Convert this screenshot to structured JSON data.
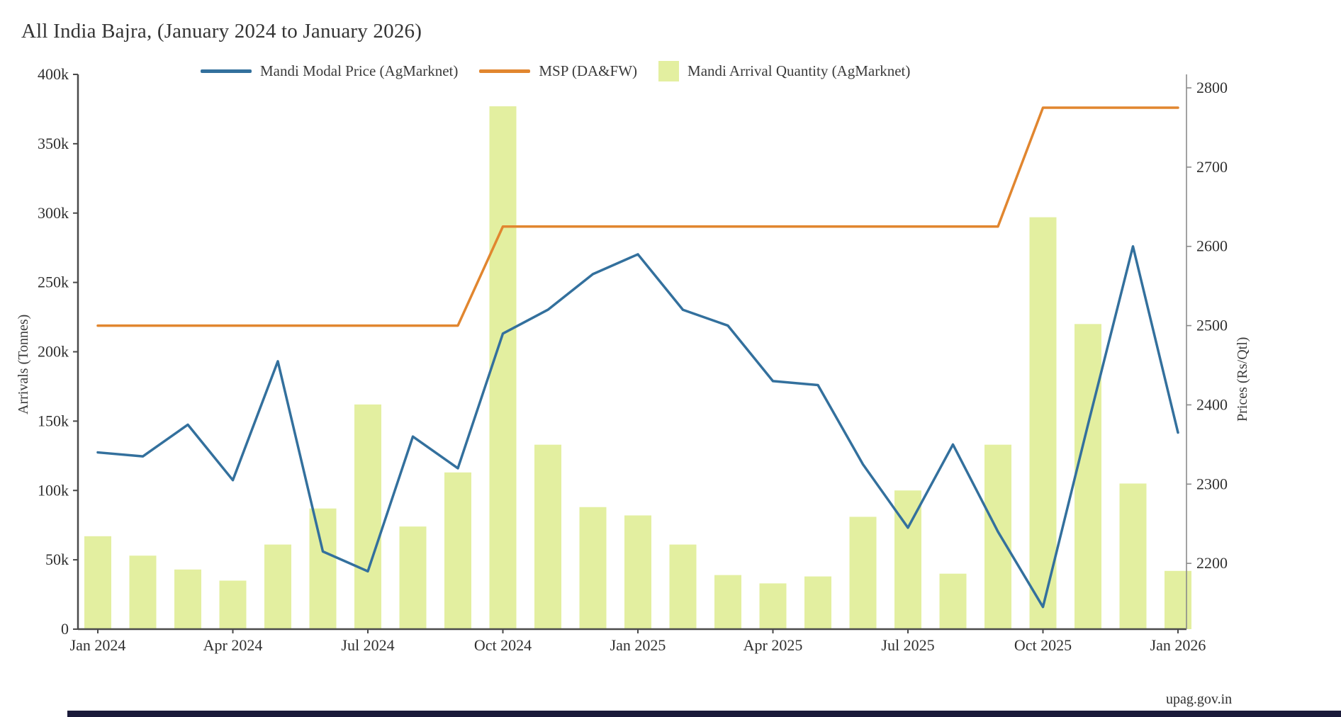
{
  "title": "All India Bajra, (January 2024 to January 2026)",
  "watermark": "upag.gov.in",
  "colors": {
    "price_line": "#33709d",
    "msp_line": "#e1862f",
    "bars": "#e3efa0",
    "axis": "#4a4a4a",
    "right_axis": "#8a8a8a",
    "tick_text": "#303030",
    "bottom_strip": "#1b1b3a"
  },
  "legend": {
    "price_label": "Mandi Modal Price (AgMarknet)",
    "msp_label": "MSP (DA&FW)",
    "arrivals_label": "Mandi Arrival Quantity (AgMarknet)"
  },
  "axes": {
    "left_title": "Arrivals (Tonnes)",
    "right_title": "Prices (Rs/Qtl)"
  },
  "chart_data": {
    "type": "bar+line",
    "months": [
      "Jan 2024",
      "Feb 2024",
      "Mar 2024",
      "Apr 2024",
      "May 2024",
      "Jun 2024",
      "Jul 2024",
      "Aug 2024",
      "Sep 2024",
      "Oct 2024",
      "Nov 2024",
      "Dec 2024",
      "Jan 2025",
      "Feb 2025",
      "Mar 2025",
      "Apr 2025",
      "May 2025",
      "Jun 2025",
      "Jul 2025",
      "Aug 2025",
      "Sep 2025",
      "Oct 2025",
      "Nov 2025",
      "Dec 2025",
      "Jan 2026"
    ],
    "x_tick_labels": [
      "Jan 2024",
      "Apr 2024",
      "Jul 2024",
      "Oct 2024",
      "Jan 2025",
      "Apr 2025",
      "Jul 2025",
      "Oct 2025",
      "Jan 2026"
    ],
    "x_tick_indices": [
      0,
      3,
      6,
      9,
      12,
      15,
      18,
      21,
      24
    ],
    "series": [
      {
        "name": "Mandi Arrival Quantity (AgMarknet)",
        "kind": "bar",
        "axis": "left",
        "unit": "thousand tonnes",
        "values": [
          67,
          53,
          43,
          35,
          61,
          87,
          162,
          74,
          113,
          377,
          133,
          88,
          82,
          61,
          39,
          33,
          38,
          81,
          100,
          40,
          133,
          297,
          220,
          105,
          42
        ]
      },
      {
        "name": "Mandi Modal Price (AgMarknet)",
        "kind": "line",
        "axis": "right",
        "unit": "Rs/Qtl",
        "values": [
          2340,
          2335,
          2375,
          2305,
          2455,
          2215,
          2190,
          2360,
          2320,
          2490,
          2520,
          2565,
          2590,
          2520,
          2500,
          2430,
          2425,
          2325,
          2245,
          2350,
          2240,
          2145,
          2375,
          2600,
          2365
        ]
      },
      {
        "name": "MSP (DA&FW)",
        "kind": "line",
        "axis": "right",
        "unit": "Rs/Qtl",
        "values": [
          2500,
          2500,
          2500,
          2500,
          2500,
          2500,
          2500,
          2500,
          2500,
          2625,
          2625,
          2625,
          2625,
          2625,
          2625,
          2625,
          2625,
          2625,
          2625,
          2625,
          2625,
          2775,
          2775,
          2775,
          2775
        ]
      }
    ],
    "left_axis": {
      "title": "Arrivals (Tonnes)",
      "min_thousand": 0,
      "max_thousand": 400,
      "tick_values_thousand": [
        0,
        50,
        100,
        150,
        200,
        250,
        300,
        350,
        400
      ],
      "tick_labels": [
        "0",
        "50k",
        "100k",
        "150k",
        "200k",
        "250k",
        "300k",
        "350k",
        "400k"
      ]
    },
    "right_axis": {
      "title": "Prices (Rs/Qtl)",
      "min": 2117,
      "max": 2817,
      "tick_values": [
        2200,
        2300,
        2400,
        2500,
        2600,
        2700,
        2800
      ],
      "tick_labels": [
        "2200",
        "2300",
        "2400",
        "2500",
        "2600",
        "2700",
        "2800"
      ]
    },
    "grid": false,
    "legend_position": "top-center"
  }
}
